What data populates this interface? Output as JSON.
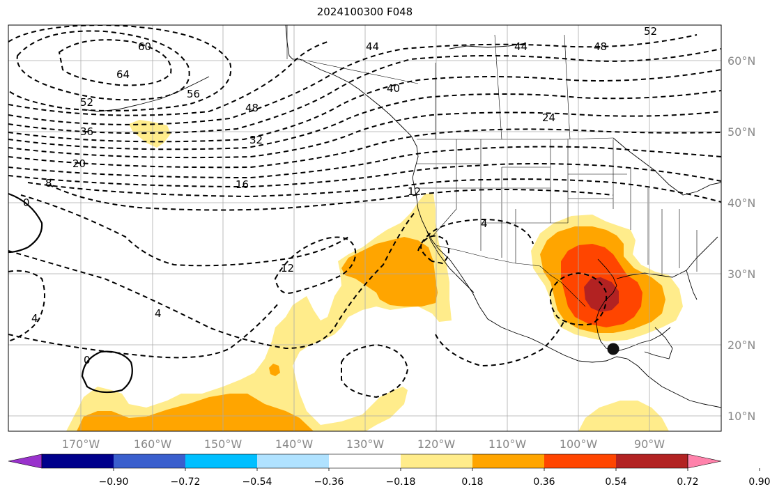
{
  "title": "2024100300 F048",
  "lon_labels": [
    "170°W",
    "160°W",
    "150°W",
    "140°W",
    "130°W",
    "120°W",
    "110°W",
    "100°W",
    "90°W"
  ],
  "lat_labels": [
    "60°N",
    "50°N",
    "40°N",
    "30°N",
    "20°N",
    "10°N"
  ],
  "colorbar": {
    "colors": [
      "#9932cc",
      "#00008b",
      "#3a5fcd",
      "#00bfff",
      "#b0e2ff",
      "#ffffff",
      "#ffec8b",
      "#ffa500",
      "#ff4500",
      "#b22222",
      "#ff82ab"
    ],
    "tick_labels": [
      "−0.90",
      "−0.72",
      "−0.54",
      "−0.36",
      "−0.18",
      "0.18",
      "0.36",
      "0.54",
      "0.72",
      "0.90"
    ]
  },
  "shading": {
    "colors": {
      "c1": "#ffec8b",
      "c2": "#ffa500",
      "c3": "#ff4500",
      "c4": "#b22222"
    }
  },
  "contour_labels": [
    "60",
    "64",
    "56",
    "52",
    "48",
    "44",
    "40",
    "52",
    "48",
    "44",
    "36",
    "32",
    "24",
    "20",
    "16",
    "8",
    "0",
    "12",
    "4",
    "12",
    "4",
    "4",
    "0"
  ],
  "marker": {
    "label": "storm-position"
  }
}
